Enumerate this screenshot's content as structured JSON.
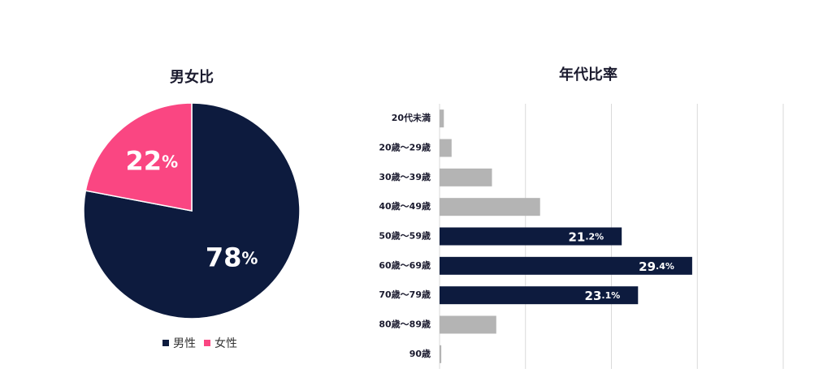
{
  "chart_data": [
    {
      "type": "pie",
      "title": "男女比",
      "categories": [
        "男性",
        "女性"
      ],
      "values": [
        78,
        22
      ],
      "value_labels": [
        "78%",
        "22%"
      ],
      "colors": [
        "#0d1b3e",
        "#fa4682"
      ],
      "legend": "bottom"
    },
    {
      "type": "barh",
      "title": "年代比率",
      "categories": [
        "20代未満",
        "20歳〜29歳",
        "30歳〜39歳",
        "40歳〜49歳",
        "50歳〜59歳",
        "60歳〜69歳",
        "70歳〜79歳",
        "80歳〜89歳",
        "90歳"
      ],
      "values": [
        0.5,
        1.4,
        6.1,
        11.7,
        21.2,
        29.4,
        23.1,
        6.6,
        0.2
      ],
      "value_labels": [
        null,
        null,
        null,
        null,
        "21.2%",
        "29.4%",
        "23.1%",
        null,
        null
      ],
      "colors": [
        "#b4b4b4",
        "#b4b4b4",
        "#b4b4b4",
        "#b4b4b4",
        "#0d1b3e",
        "#0d1b3e",
        "#0d1b3e",
        "#b4b4b4",
        "#b4b4b4"
      ],
      "xlim": [
        0,
        40
      ],
      "xticks": [
        0,
        10,
        20,
        30,
        40
      ],
      "grid": true
    }
  ]
}
